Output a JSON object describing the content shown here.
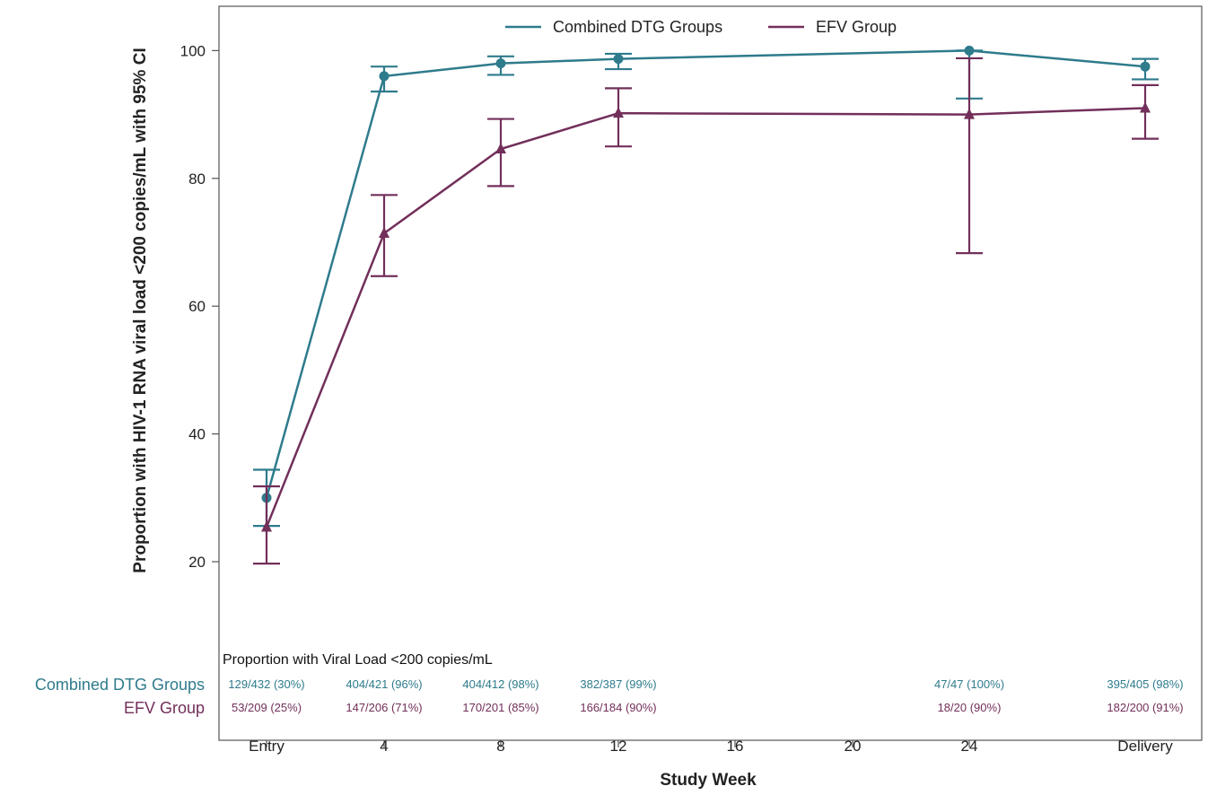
{
  "chart_data": {
    "type": "line",
    "title": "",
    "xlabel": "Study Week",
    "ylabel": "Proportion with HIV-1 RNA viral load <200 copies/mL with 95% CI",
    "x_ticks": [
      "Entry",
      "4",
      "8",
      "12",
      "16",
      "20",
      "24",
      "Delivery"
    ],
    "y_ticks": [
      "20",
      "40",
      "60",
      "80",
      "100"
    ],
    "ylim": [
      7,
      107
    ],
    "grid": false,
    "legend_position": "top-center",
    "series": [
      {
        "name": "Combined DTG Groups",
        "color": "#2E7B8C",
        "marker": "circle",
        "x": [
          "Entry",
          "4",
          "8",
          "12",
          "24",
          "Delivery"
        ],
        "y": [
          30,
          96,
          98,
          98.7,
          100,
          97.5
        ],
        "ci_low": [
          25.6,
          93.6,
          96.2,
          97.1,
          92.5,
          95.5
        ],
        "ci_high": [
          34.4,
          97.5,
          99.1,
          99.5,
          100,
          98.7
        ]
      },
      {
        "name": "EFV Group",
        "color": "#722F5A",
        "marker": "triangle",
        "x": [
          "Entry",
          "4",
          "8",
          "12",
          "24",
          "Delivery"
        ],
        "y": [
          25.4,
          71.4,
          84.6,
          90.2,
          90,
          91
        ],
        "ci_low": [
          19.7,
          64.7,
          78.8,
          85,
          68.3,
          86.2
        ],
        "ci_high": [
          31.8,
          77.4,
          89.3,
          94.1,
          98.8,
          94.6
        ]
      }
    ],
    "table": {
      "title": "Proportion with Viral Load <200 copies/mL",
      "rows": [
        {
          "label": "Combined DTG Groups",
          "color": "#2E7B8C",
          "cells": [
            "129/432 (30%)",
            "404/421 (96%)",
            "404/412 (98%)",
            "382/387 (99%)",
            "",
            "",
            "47/47 (100%)",
            "395/405 (98%)"
          ]
        },
        {
          "label": "EFV Group",
          "color": "#722F5A",
          "cells": [
            "53/209 (25%)",
            "147/206 (71%)",
            "170/201 (85%)",
            "166/184 (90%)",
            "",
            "",
            "18/20 (90%)",
            "182/200 (91%)"
          ]
        }
      ]
    }
  }
}
